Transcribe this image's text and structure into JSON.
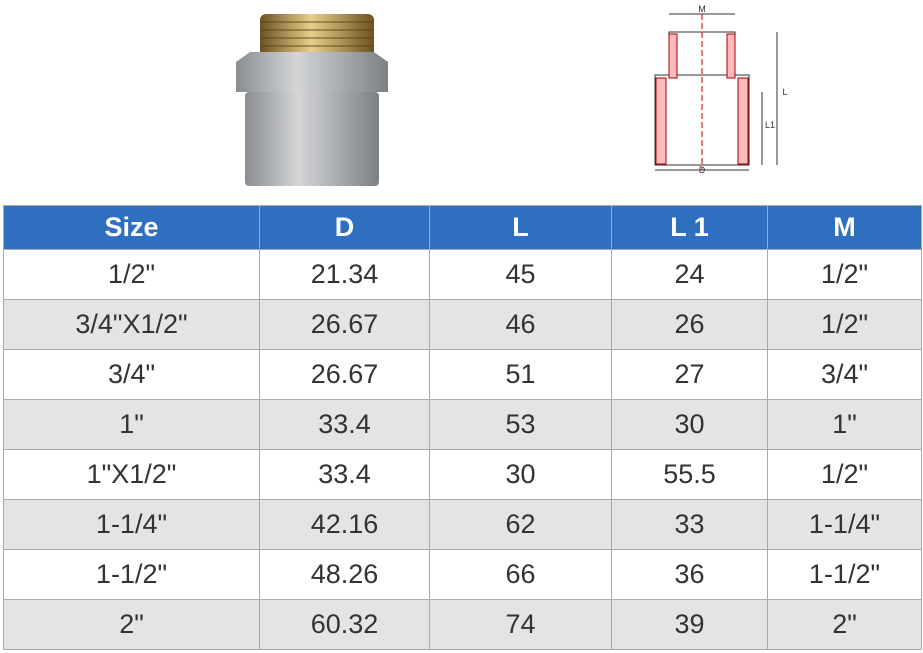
{
  "diagram": {
    "labels": {
      "m": "M",
      "l": "L",
      "l1": "L1",
      "d": "D"
    }
  },
  "table": {
    "header": [
      "Size",
      "D",
      "L",
      "L 1",
      "M"
    ],
    "rows": [
      [
        "1/2\"",
        "21.34",
        "45",
        "24",
        "1/2\""
      ],
      [
        "3/4\"X1/2\"",
        "26.67",
        "46",
        "26",
        "1/2\""
      ],
      [
        "3/4\"",
        "26.67",
        "51",
        "27",
        "3/4\""
      ],
      [
        "1\"",
        "33.4",
        "53",
        "30",
        "1\""
      ],
      [
        "1\"X1/2\"",
        "33.4",
        "30",
        "55.5",
        "1/2\""
      ],
      [
        "1-1/4\"",
        "42.16",
        "62",
        "33",
        "1-1/4\""
      ],
      [
        "1-1/2\"",
        "48.26",
        "66",
        "36",
        "1-1/2\""
      ],
      [
        "2\"",
        "60.32",
        "74",
        "39",
        "2\""
      ]
    ]
  }
}
